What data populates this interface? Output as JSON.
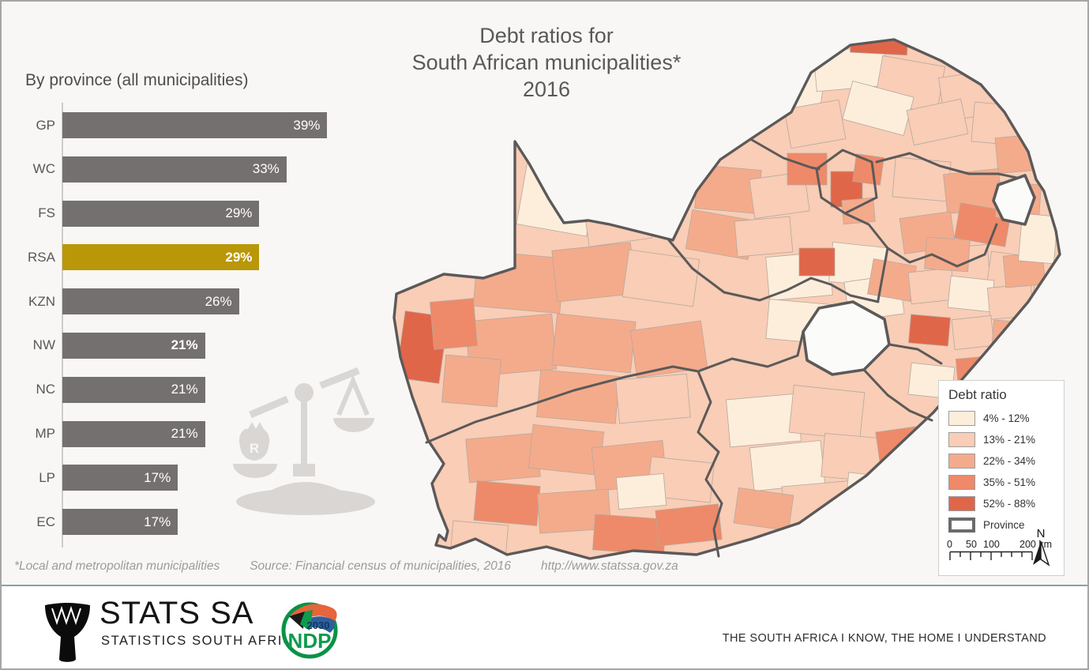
{
  "poster": {
    "map_title_lines": [
      "Debt ratios for",
      "South African municipalities*",
      "2016"
    ],
    "chart_title": "By province (all municipalities)",
    "footer": {
      "note": "*Local and metropolitan municipalities",
      "source": "Source: Financial census of municipalities,  2016",
      "url": "http://www.statssa.gov.za"
    },
    "brand": {
      "stats_sa": "STATS SA",
      "stats_sub": "STATISTICS SOUTH AFRICA",
      "ndp": "NDP",
      "ndp_year": "2030",
      "tagline": "THE SOUTH AFRICA I KNOW, THE HOME I UNDERSTAND"
    }
  },
  "chart_data": {
    "type": "bar",
    "orientation": "horizontal",
    "title": "By province (all municipalities)",
    "categories": [
      "GP",
      "WC",
      "FS",
      "RSA",
      "KZN",
      "NW",
      "NC",
      "MP",
      "LP",
      "EC"
    ],
    "values": [
      39,
      33,
      29,
      29,
      26,
      21,
      21,
      21,
      17,
      17
    ],
    "unit": "%",
    "xlim": [
      0,
      40
    ],
    "bar_color": "#757070",
    "highlight_category": "RSA",
    "highlight_color": "#b99708",
    "bold_value_labels": [
      "RSA",
      "NW"
    ]
  },
  "map": {
    "legend_title": "Debt ratio",
    "classes": [
      {
        "label": "4% - 12%",
        "color": "#fdeedc"
      },
      {
        "label": "13% - 21%",
        "color": "#f9cdb6"
      },
      {
        "label": "22% - 34%",
        "color": "#f4ab8c"
      },
      {
        "label": "35% - 51%",
        "color": "#ee8a69"
      },
      {
        "label": "52% - 88%",
        "color": "#e0664a"
      }
    ],
    "province_label": "Province",
    "scale_ticks": [
      "0",
      "50",
      "100",
      "200 km"
    ],
    "north_label": "N"
  }
}
